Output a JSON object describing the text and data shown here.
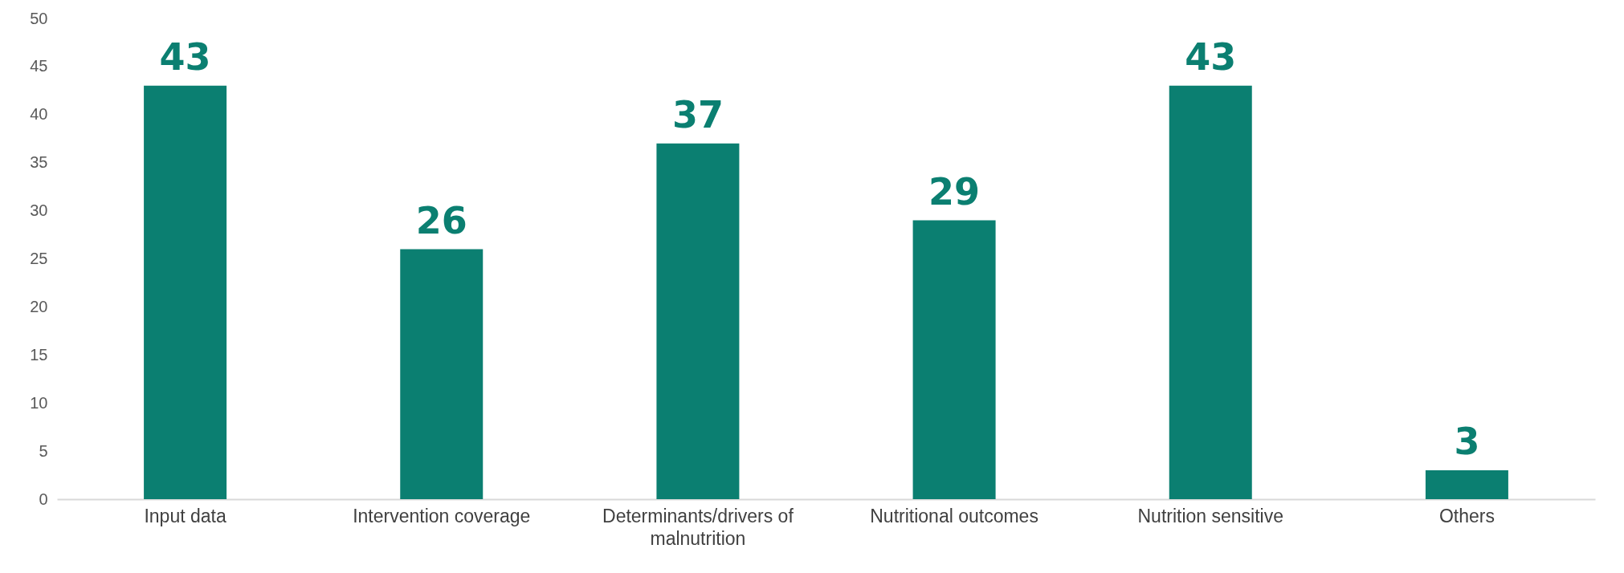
{
  "chart_data": {
    "type": "bar",
    "categories": [
      "Input data",
      "Intervention coverage",
      "Determinants/drivers of malnutrition",
      "Nutritional outcomes",
      "Nutrition sensitive",
      "Others"
    ],
    "values": [
      43,
      26,
      37,
      29,
      43,
      3
    ],
    "color": "#0b7f71",
    "ylim": [
      0,
      50
    ],
    "yticks": [
      0,
      5,
      10,
      15,
      20,
      25,
      30,
      35,
      40,
      45,
      50
    ],
    "grid": false,
    "data_labels": true
  }
}
